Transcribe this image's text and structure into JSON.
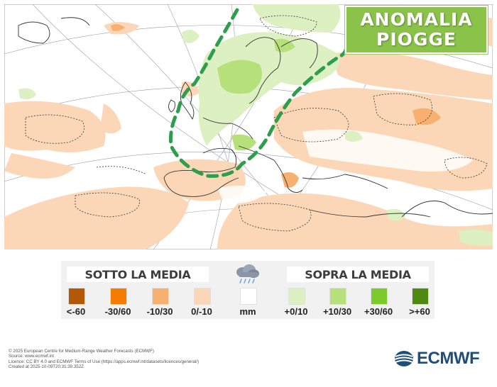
{
  "title": {
    "line1": "ANOMALIA",
    "line2": "PIOGGE"
  },
  "legend": {
    "below_heading": "SOTTO LA MEDIA",
    "above_heading": "SOPRA LA MEDIA",
    "unit_label": "mm",
    "below": [
      {
        "label": "<-60",
        "color": "#b35806"
      },
      {
        "label": "-30/60",
        "color": "#f57c00"
      },
      {
        "label": "-10/30",
        "color": "#f8b070"
      },
      {
        "label": "0/-10",
        "color": "#fbd7b7"
      }
    ],
    "neutral": {
      "label": "mm",
      "color": "#ffffff"
    },
    "above": [
      {
        "label": "+0/10",
        "color": "#dcf0c2"
      },
      {
        "label": "+10/30",
        "color": "#b5e07a"
      },
      {
        "label": "+30/60",
        "color": "#7ccb2c"
      },
      {
        "label": ">+60",
        "color": "#4f8a10"
      }
    ]
  },
  "credits": [
    "© 2025 European Centre for Medium-Range Weather Forecasts (ECMWF)",
    "Source: www.ecmwf.int",
    "Licence: CC BY 4.0 and ECMWF Terms of Use (https://apps.ecmwf.int/datasets/licences/general/)",
    "Created at 2025-10-09T20:31:39.352Z"
  ],
  "logo": {
    "text": "ECMWF"
  },
  "colors": {
    "dry_light": "#fbd7b7",
    "dry_mid": "#f8b070",
    "wet_light": "#dcf0c2",
    "wet_mid": "#b5e07a",
    "highlight_dashes": "#2e9e4e",
    "title_bg": "#8bc34a"
  }
}
